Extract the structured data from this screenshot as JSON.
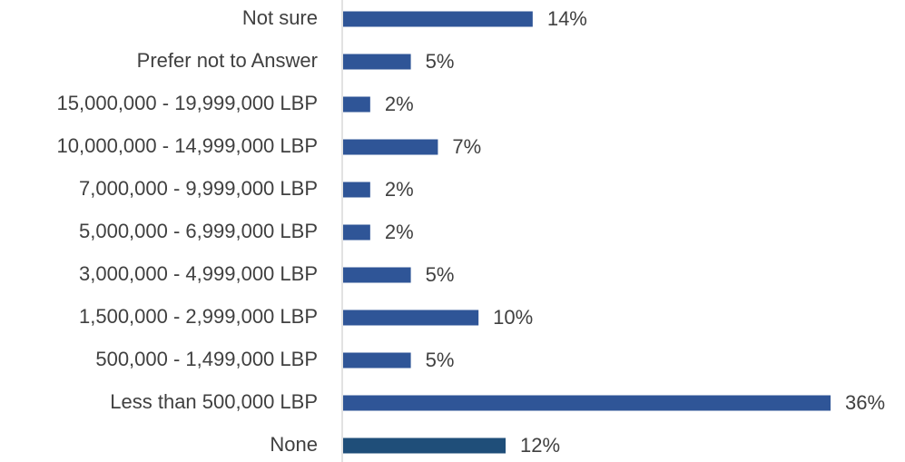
{
  "chart_data": {
    "type": "bar",
    "orientation": "horizontal",
    "categories": [
      "Not sure",
      "Prefer not to Answer",
      "15,000,000 - 19,999,000 LBP",
      "10,000,000 - 14,999,000 LBP",
      "7,000,000 - 9,999,000 LBP",
      "5,000,000 - 6,999,000 LBP",
      "3,000,000 - 4,999,000 LBP",
      "1,500,000 - 2,999,000 LBP",
      "500,000 - 1,499,000 LBP",
      "Less than 500,000 LBP",
      "None"
    ],
    "values": [
      14,
      5,
      2,
      7,
      2,
      2,
      5,
      10,
      5,
      36,
      12
    ],
    "value_labels": [
      "14%",
      "5%",
      "2%",
      "7%",
      "2%",
      "2%",
      "5%",
      "10%",
      "5%",
      "36%",
      "12%"
    ],
    "colors": [
      "#2f5597",
      "#2f5597",
      "#2f5597",
      "#2f5597",
      "#2f5597",
      "#2f5597",
      "#2f5597",
      "#2f5597",
      "#2f5597",
      "#2f5597",
      "#1f4e79"
    ]
  }
}
